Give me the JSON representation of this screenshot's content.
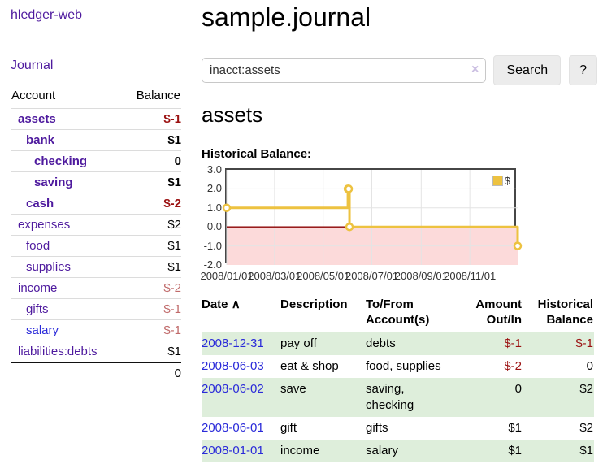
{
  "palette": {
    "purple": "#4e1a9e",
    "blue": "#2a2ad9",
    "neg": "#9b1111",
    "neg_light": "#c06a6a",
    "row_green": "#deeedb"
  },
  "sidebar": {
    "app_title": "hledger-web",
    "nav": [
      {
        "label": "Journal"
      }
    ],
    "accounts_table": {
      "headers": {
        "account": "Account",
        "balance": "Balance"
      },
      "rows": [
        {
          "account": "assets",
          "depth": 1,
          "bold": true,
          "balance": "$-1",
          "balance_tone": "neg"
        },
        {
          "account": "bank",
          "depth": 2,
          "bold": true,
          "balance": "$1",
          "balance_tone": "none"
        },
        {
          "account": "checking",
          "depth": 3,
          "bold": true,
          "balance": "0",
          "balance_tone": "none"
        },
        {
          "account": "saving",
          "depth": 3,
          "bold": true,
          "balance": "$1",
          "balance_tone": "none"
        },
        {
          "account": "cash",
          "depth": 2,
          "bold": true,
          "balance": "$-2",
          "balance_tone": "neg"
        },
        {
          "account": "expenses",
          "depth": 1,
          "bold": false,
          "balance": "$2",
          "balance_tone": "none"
        },
        {
          "account": "food",
          "depth": 2,
          "bold": false,
          "balance": "$1",
          "balance_tone": "none"
        },
        {
          "account": "supplies",
          "depth": 2,
          "bold": false,
          "balance": "$1",
          "balance_tone": "none"
        },
        {
          "account": "income",
          "depth": 1,
          "bold": false,
          "balance": "$-2",
          "balance_tone": "neg_light"
        },
        {
          "account": "gifts",
          "depth": 2,
          "bold": false,
          "balance": "$-1",
          "balance_tone": "neg_light"
        },
        {
          "account": "salary",
          "depth": 2,
          "bold": false,
          "balance": "$-1",
          "balance_tone": "neg_light",
          "link_tone": "blue"
        },
        {
          "account": "liabilities:debts",
          "depth": 1,
          "bold": false,
          "balance": "$1",
          "balance_tone": "none"
        }
      ],
      "total": "0"
    }
  },
  "header": {
    "title": "sample.journal"
  },
  "search": {
    "value": "inacct:assets",
    "clear_icon": "×",
    "button_label": "Search",
    "help_label": "?"
  },
  "account_page": {
    "heading": "assets",
    "chart_label": "Historical Balance:"
  },
  "chart_data": {
    "type": "line",
    "step": true,
    "title": "Historical Balance",
    "series": [
      {
        "name": "$",
        "color": "#EDC240",
        "points": [
          [
            "2008-01-01",
            1
          ],
          [
            "2008-06-01",
            2
          ],
          [
            "2008-06-02",
            2
          ],
          [
            "2008-06-03",
            0
          ],
          [
            "2008-12-31",
            -1
          ]
        ]
      }
    ],
    "xlim": [
      "2008-01-01",
      "2008-12-31"
    ],
    "ylim": [
      -2,
      3
    ],
    "yticks": [
      3.0,
      2.0,
      1.0,
      0.0,
      -1.0,
      -2.0
    ],
    "xticks": [
      "2008/01/01",
      "2008/03/01",
      "2008/05/01",
      "2008/07/01",
      "2008/09/01",
      "2008/11/01"
    ],
    "grid": true,
    "gridline_color": "#e4e4e4",
    "negative_region_fill": "#fcdada",
    "zero_line_color": "#8b0000",
    "legend_position": "top-right"
  },
  "register": {
    "columns": [
      "Date",
      "Description",
      "To/From Account(s)",
      "Amount Out/In",
      "Historical Balance"
    ],
    "sort_icon": "∧",
    "rows": [
      {
        "date": "2008-12-31",
        "description": "pay off",
        "accounts": "debts",
        "amount": "$-1",
        "amount_tone": "neg",
        "balance": "$-1",
        "balance_tone": "neg"
      },
      {
        "date": "2008-06-03",
        "description": "eat & shop",
        "accounts": "food, supplies",
        "amount": "$-2",
        "amount_tone": "neg",
        "balance": "0",
        "balance_tone": "none"
      },
      {
        "date": "2008-06-02",
        "description": "save",
        "accounts": "saving, checking",
        "amount": "0",
        "amount_tone": "none",
        "balance": "$2",
        "balance_tone": "none"
      },
      {
        "date": "2008-06-01",
        "description": "gift",
        "accounts": "gifts",
        "amount": "$1",
        "amount_tone": "none",
        "balance": "$2",
        "balance_tone": "none"
      },
      {
        "date": "2008-01-01",
        "description": "income",
        "accounts": "salary",
        "amount": "$1",
        "amount_tone": "none",
        "balance": "$1",
        "balance_tone": "none"
      }
    ]
  }
}
